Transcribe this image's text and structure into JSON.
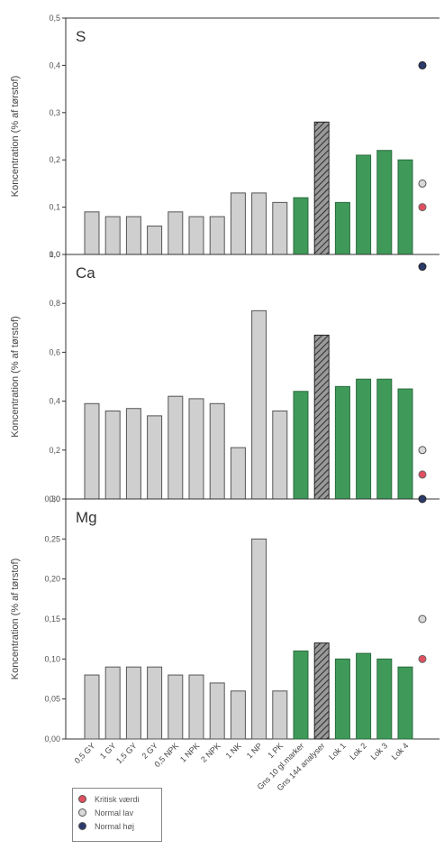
{
  "chart_data": {
    "type": "bar",
    "categories": [
      "0,5 GY",
      "1 GY",
      "1,5 GY",
      "2 GY",
      "0,5 NPK",
      "1 NPK",
      "2 NPK",
      "1 NK",
      "1 NP",
      "1 PK",
      "Gns 10 gl.marker",
      "Gns 144 analyser",
      "Lok 1",
      "Lok 2",
      "Lok 3",
      "Lok 4"
    ],
    "bar_styles": [
      "gray",
      "gray",
      "gray",
      "gray",
      "gray",
      "gray",
      "gray",
      "gray",
      "gray",
      "gray",
      "green",
      "hatched",
      "green",
      "green",
      "green",
      "green"
    ],
    "colors": {
      "gray": "#cfcfcf",
      "green": "#3f9a5a",
      "hatched": "#6a6a6a",
      "kritisk": "#e05060",
      "normal_lav": "#d8d8d8",
      "normal_hoj": "#2a3a6a"
    },
    "ylabel": "Koncentration (% af tørstof)",
    "panels": [
      {
        "title": "S",
        "ylim": [
          0,
          0.5
        ],
        "ticks": [
          "0,0",
          "0,1",
          "0,2",
          "0,3",
          "0,4",
          "0,5"
        ],
        "values": [
          0.09,
          0.08,
          0.08,
          0.06,
          0.09,
          0.08,
          0.08,
          0.13,
          0.13,
          0.11,
          0.12,
          0.28,
          0.11,
          0.21,
          0.22,
          0.2
        ],
        "kritisk_vaerdi": 0.1,
        "normal_lav": 0.15,
        "normal_hoj": 0.4
      },
      {
        "title": "Ca",
        "ylim": [
          0,
          1.0
        ],
        "ticks": [
          "0,0",
          "0,2",
          "0,4",
          "0,6",
          "0,8",
          "1,0"
        ],
        "values": [
          0.39,
          0.36,
          0.37,
          0.34,
          0.42,
          0.41,
          0.39,
          0.21,
          0.77,
          0.36,
          0.44,
          0.67,
          0.46,
          0.49,
          0.49,
          0.45
        ],
        "kritisk_vaerdi": 0.1,
        "normal_lav": 0.2,
        "normal_hoj": 0.95
      },
      {
        "title": "Mg",
        "ylim": [
          0,
          0.3
        ],
        "ticks": [
          "0,00",
          "0,05",
          "0,10",
          "0,15",
          "0,20",
          "0,25",
          "0,30"
        ],
        "values": [
          0.08,
          0.09,
          0.09,
          0.09,
          0.08,
          0.08,
          0.07,
          0.06,
          0.25,
          0.06,
          0.11,
          0.12,
          0.1,
          0.107,
          0.1,
          0.09
        ],
        "kritisk_vaerdi": 0.1,
        "normal_lav": 0.15,
        "normal_hoj": 0.3
      }
    ],
    "legend": [
      {
        "key": "kritisk",
        "label": "Kritisk værdi"
      },
      {
        "key": "normal_lav",
        "label": "Normal lav"
      },
      {
        "key": "normal_hoj",
        "label": "Normal høj"
      }
    ]
  }
}
